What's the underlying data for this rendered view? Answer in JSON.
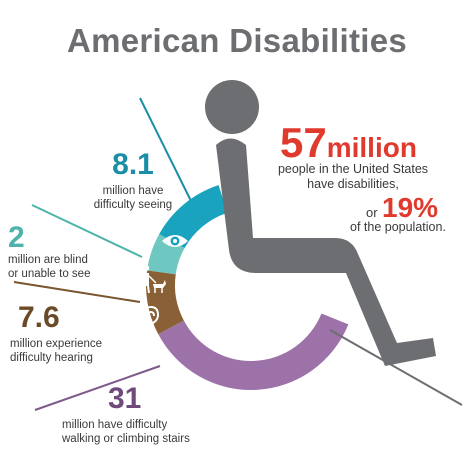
{
  "title": "American Disabilities",
  "colors": {
    "title": "#6d6e71",
    "wheelchair": "#6d6e71",
    "seeing": "#1aa3bf",
    "blind": "#6fc7c1",
    "hearing": "#8a6136",
    "walking": "#9d72a8",
    "highlight": "#e03a2e"
  },
  "headline": {
    "number": "57",
    "unit": "million",
    "line1": "people in the United States",
    "line2": "have disabilities,",
    "or_word": "or",
    "percent": "19%",
    "line3": "of the population."
  },
  "stats": [
    {
      "id": "seeing",
      "value": "8.1",
      "line1": "million have",
      "line2": "difficulty seeing",
      "icon": "eye-icon"
    },
    {
      "id": "blind",
      "value": "2",
      "line1": "million are blind",
      "line2": "or unable to see",
      "icon": "guide-dog-icon"
    },
    {
      "id": "hearing",
      "value": "7.6",
      "line1": "million experience",
      "line2": "difficulty hearing",
      "icon": "ear-icon"
    },
    {
      "id": "walking",
      "value": "31",
      "line1": "million have difficulty",
      "line2": "walking or climbing stairs",
      "icon": "walking-cane-icon"
    }
  ]
}
